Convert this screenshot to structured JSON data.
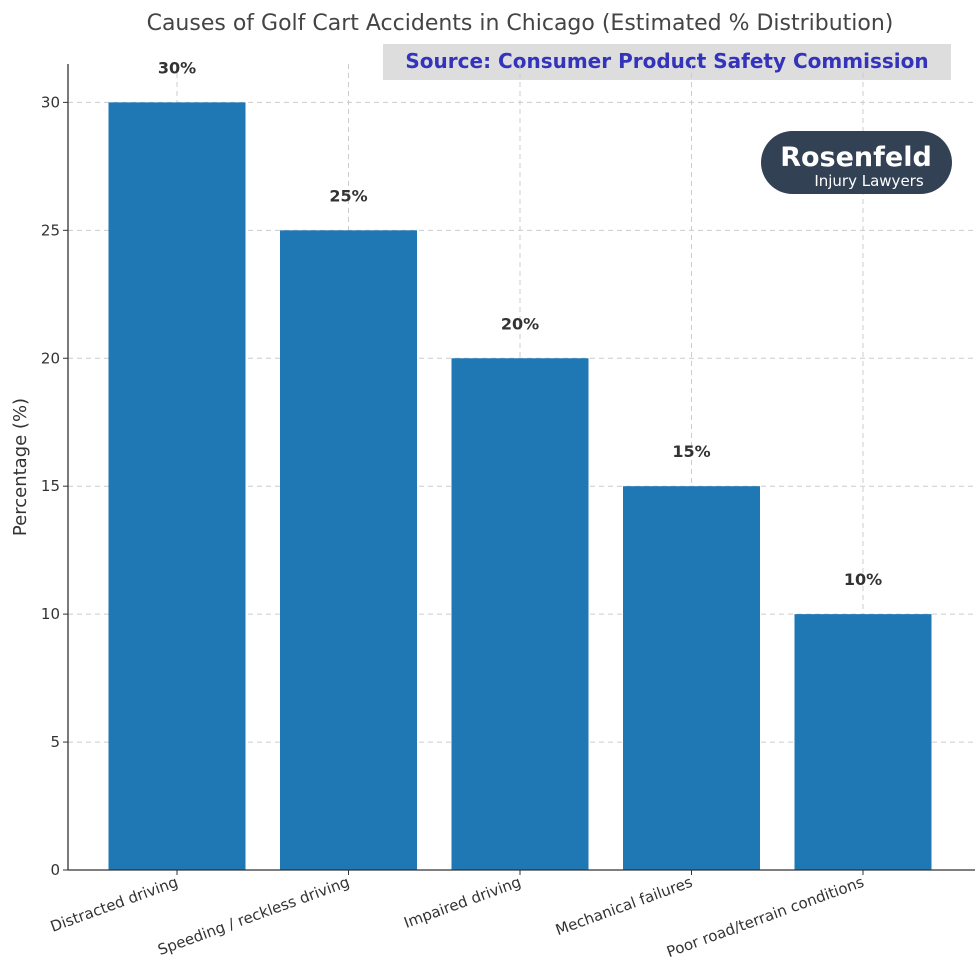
{
  "chart_data": {
    "type": "bar",
    "title": "Causes of Golf Cart Accidents in Chicago (Estimated % Distribution)",
    "xlabel": "",
    "ylabel": "Percentage (%)",
    "categories": [
      "Distracted driving",
      "Speeding / reckless driving",
      "Impaired driving",
      "Mechanical failures",
      "Poor road/terrain conditions"
    ],
    "values": [
      30,
      25,
      20,
      15,
      10
    ],
    "data_labels": [
      "30%",
      "25%",
      "20%",
      "15%",
      "10%"
    ],
    "ylim": [
      0,
      31.5
    ],
    "yticks": [
      0,
      5,
      10,
      15,
      20,
      25,
      30
    ],
    "grid": true,
    "bar_color": "#1f77b4"
  },
  "source_banner": {
    "text": "Source:  Consumer Product Safety Commission",
    "text_color": "#3333bb",
    "background": "#dddddd"
  },
  "logo": {
    "brand_first": "R",
    "brand_rest": "osenfeld",
    "subtitle": "Injury Lawyers",
    "background": "#334155"
  }
}
